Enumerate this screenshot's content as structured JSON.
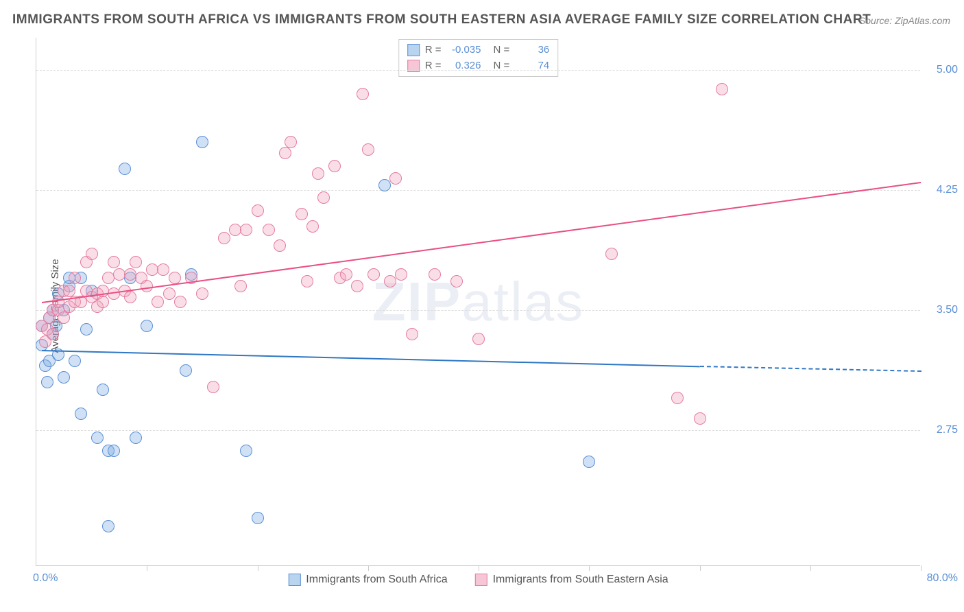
{
  "title": "IMMIGRANTS FROM SOUTH AFRICA VS IMMIGRANTS FROM SOUTH EASTERN ASIA AVERAGE FAMILY SIZE CORRELATION CHART",
  "source": "Source: ZipAtlas.com",
  "watermark_bold": "ZIP",
  "watermark_thin": "atlas",
  "y_label": "Average Family Size",
  "x_min_label": "0.0%",
  "x_max_label": "80.0%",
  "chart": {
    "type": "scatter",
    "background_color": "#ffffff",
    "grid_color": "#dddddd",
    "axis_color": "#cccccc",
    "text_color": "#555555",
    "tick_label_color": "#5a8fd6",
    "xlim": [
      0,
      80
    ],
    "ylim": [
      1.9,
      5.2
    ],
    "y_gridlines": [
      2.75,
      3.5,
      4.25,
      5.0
    ],
    "x_ticks": [
      0,
      10,
      20,
      30,
      40,
      50,
      60,
      70,
      80
    ],
    "marker_radius": 9,
    "marker_stroke_width": 1.2,
    "series": [
      {
        "name": "Immigrants from South Africa",
        "fill_color": "rgba(120,170,225,0.35)",
        "stroke_color": "#5a8fd6",
        "swatch_fill": "#b8d4ef",
        "swatch_stroke": "#5a8fd6",
        "R": "-0.035",
        "N": "36",
        "trend": {
          "x1": 0.5,
          "y1": 3.25,
          "x2_solid": 60,
          "y2_solid": 3.15,
          "x2_dash": 80,
          "y2_dash": 3.12,
          "color": "#2f77c4"
        },
        "points": [
          [
            0.5,
            3.28
          ],
          [
            0.5,
            3.4
          ],
          [
            0.8,
            3.15
          ],
          [
            1.0,
            3.05
          ],
          [
            1.2,
            3.45
          ],
          [
            1.2,
            3.18
          ],
          [
            1.5,
            3.5
          ],
          [
            1.5,
            3.35
          ],
          [
            1.8,
            3.4
          ],
          [
            2.0,
            3.6
          ],
          [
            2.0,
            3.22
          ],
          [
            2.5,
            3.5
          ],
          [
            2.5,
            3.08
          ],
          [
            3.0,
            3.65
          ],
          [
            3.0,
            3.7
          ],
          [
            3.5,
            3.18
          ],
          [
            4.0,
            3.7
          ],
          [
            4.0,
            2.85
          ],
          [
            4.5,
            3.38
          ],
          [
            5.0,
            3.62
          ],
          [
            5.5,
            2.7
          ],
          [
            6.0,
            3.0
          ],
          [
            6.5,
            2.62
          ],
          [
            6.5,
            2.15
          ],
          [
            7.0,
            2.62
          ],
          [
            8.0,
            4.38
          ],
          [
            8.5,
            3.7
          ],
          [
            9.0,
            2.7
          ],
          [
            10.0,
            3.4
          ],
          [
            13.5,
            3.12
          ],
          [
            14.0,
            3.72
          ],
          [
            15.0,
            4.55
          ],
          [
            19.0,
            2.62
          ],
          [
            20.0,
            2.2
          ],
          [
            31.5,
            4.28
          ],
          [
            50.0,
            2.55
          ]
        ]
      },
      {
        "name": "Immigrants from South Eastern Asia",
        "fill_color": "rgba(240,160,185,0.35)",
        "stroke_color": "#e57ba0",
        "swatch_fill": "#f6c6d6",
        "swatch_stroke": "#e57ba0",
        "R": "0.326",
        "N": "74",
        "trend": {
          "x1": 0.5,
          "y1": 3.55,
          "x2_solid": 80,
          "y2_solid": 4.3,
          "x2_dash": 80,
          "y2_dash": 4.3,
          "color": "#e94f82"
        },
        "points": [
          [
            0.5,
            3.4
          ],
          [
            0.8,
            3.3
          ],
          [
            1.0,
            3.38
          ],
          [
            1.2,
            3.45
          ],
          [
            1.5,
            3.35
          ],
          [
            1.5,
            3.5
          ],
          [
            2.0,
            3.5
          ],
          [
            2.0,
            3.55
          ],
          [
            2.5,
            3.45
          ],
          [
            2.5,
            3.62
          ],
          [
            3.0,
            3.52
          ],
          [
            3.0,
            3.62
          ],
          [
            3.5,
            3.55
          ],
          [
            3.5,
            3.7
          ],
          [
            4.0,
            3.55
          ],
          [
            4.5,
            3.62
          ],
          [
            4.5,
            3.8
          ],
          [
            5.0,
            3.58
          ],
          [
            5.0,
            3.85
          ],
          [
            5.5,
            3.6
          ],
          [
            5.5,
            3.52
          ],
          [
            6.0,
            3.55
          ],
          [
            6.0,
            3.62
          ],
          [
            6.5,
            3.7
          ],
          [
            7.0,
            3.8
          ],
          [
            7.0,
            3.6
          ],
          [
            7.5,
            3.72
          ],
          [
            8.0,
            3.62
          ],
          [
            8.5,
            3.72
          ],
          [
            8.5,
            3.58
          ],
          [
            9.0,
            3.8
          ],
          [
            9.5,
            3.7
          ],
          [
            10.0,
            3.65
          ],
          [
            10.5,
            3.75
          ],
          [
            11.0,
            3.55
          ],
          [
            11.5,
            3.75
          ],
          [
            12.0,
            3.6
          ],
          [
            12.5,
            3.7
          ],
          [
            13.0,
            3.55
          ],
          [
            14.0,
            3.7
          ],
          [
            15.0,
            3.6
          ],
          [
            16.0,
            3.02
          ],
          [
            17.0,
            3.95
          ],
          [
            18.0,
            4.0
          ],
          [
            18.5,
            3.65
          ],
          [
            19.0,
            4.0
          ],
          [
            20.0,
            4.12
          ],
          [
            21.0,
            4.0
          ],
          [
            22.0,
            3.9
          ],
          [
            22.5,
            4.48
          ],
          [
            23.0,
            4.55
          ],
          [
            24.0,
            4.1
          ],
          [
            24.5,
            3.68
          ],
          [
            25.0,
            4.02
          ],
          [
            25.5,
            4.35
          ],
          [
            26.0,
            4.2
          ],
          [
            27.0,
            4.4
          ],
          [
            27.5,
            3.7
          ],
          [
            28.0,
            3.72
          ],
          [
            29.0,
            3.65
          ],
          [
            29.5,
            4.85
          ],
          [
            30.0,
            4.5
          ],
          [
            30.5,
            3.72
          ],
          [
            32.0,
            3.68
          ],
          [
            32.5,
            4.32
          ],
          [
            33.0,
            3.72
          ],
          [
            34.0,
            3.35
          ],
          [
            36.0,
            3.72
          ],
          [
            38.0,
            3.68
          ],
          [
            40.0,
            3.32
          ],
          [
            52.0,
            3.85
          ],
          [
            58.0,
            2.95
          ],
          [
            60.0,
            2.82
          ],
          [
            62.0,
            4.88
          ]
        ]
      }
    ]
  },
  "stats_labels": {
    "R": "R =",
    "N": "N ="
  }
}
